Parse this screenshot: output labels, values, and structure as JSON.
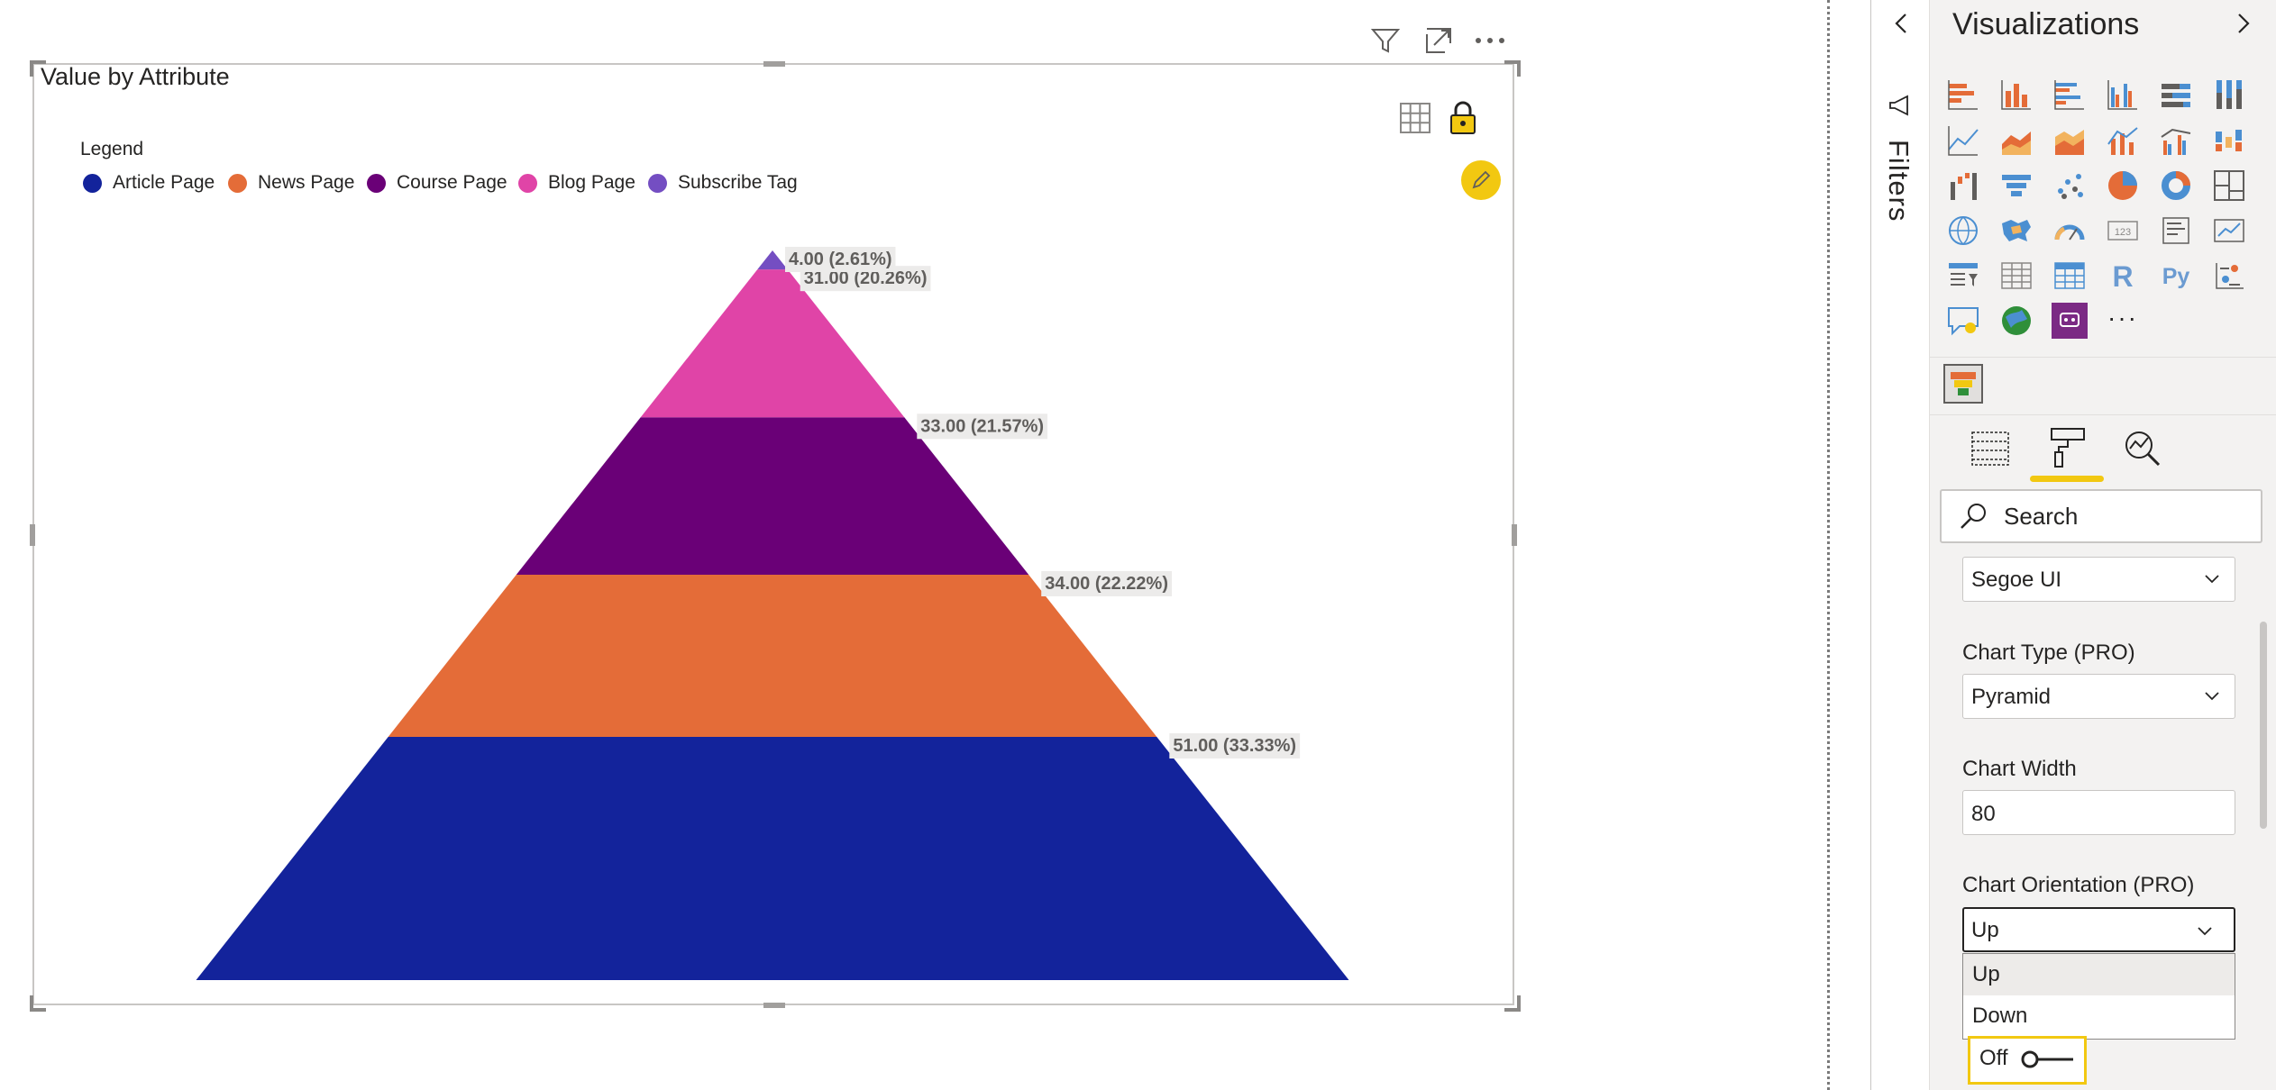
{
  "visual": {
    "title": "Value by Attribute",
    "legend_title": "Legend",
    "header_icons": [
      "filter-icon",
      "focus-mode-icon",
      "more-options-icon"
    ],
    "inner_icons": [
      "table-icon",
      "lock-icon",
      "pencil-icon"
    ]
  },
  "chart_data": {
    "type": "pyramid",
    "orientation": "Up",
    "legend_position": "top-left",
    "series": [
      {
        "name": "Article Page",
        "value": 51.0,
        "percent": 33.33,
        "label": "51.00 (33.33%)",
        "color": "#13239b"
      },
      {
        "name": "News Page",
        "value": 34.0,
        "percent": 22.22,
        "label": "34.00 (22.22%)",
        "color": "#e46c38"
      },
      {
        "name": "Course Page",
        "value": 33.0,
        "percent": 21.57,
        "label": "33.00 (21.57%)",
        "color": "#6a0077"
      },
      {
        "name": "Blog Page",
        "value": 31.0,
        "percent": 20.26,
        "label": "31.00 (20.26%)",
        "color": "#e044a7"
      },
      {
        "name": "Subscribe Tag",
        "value": 4.0,
        "percent": 2.61,
        "label": "4.00 (2.61%)",
        "color": "#744ec2"
      }
    ]
  },
  "filters_pane": {
    "label": "Filters"
  },
  "viz_pane": {
    "title": "Visualizations",
    "more_label": "···",
    "tabs": [
      "fields-tab-icon",
      "format-tab-icon",
      "analytics-tab-icon"
    ],
    "active_tab": "format",
    "search_placeholder": "Search",
    "font_family_value": "Segoe UI",
    "chart_type_label": "Chart Type (PRO)",
    "chart_type_value": "Pyramid",
    "chart_width_label": "Chart Width",
    "chart_width_value": "80",
    "orientation_label": "Chart Orientation (PRO)",
    "orientation_value": "Up",
    "orientation_options": [
      "Up",
      "Down"
    ],
    "toggle_label": "Off",
    "toggle_state": false
  },
  "colors": {
    "accent": "#f2c811",
    "pane_bg": "#f3f2f1"
  }
}
